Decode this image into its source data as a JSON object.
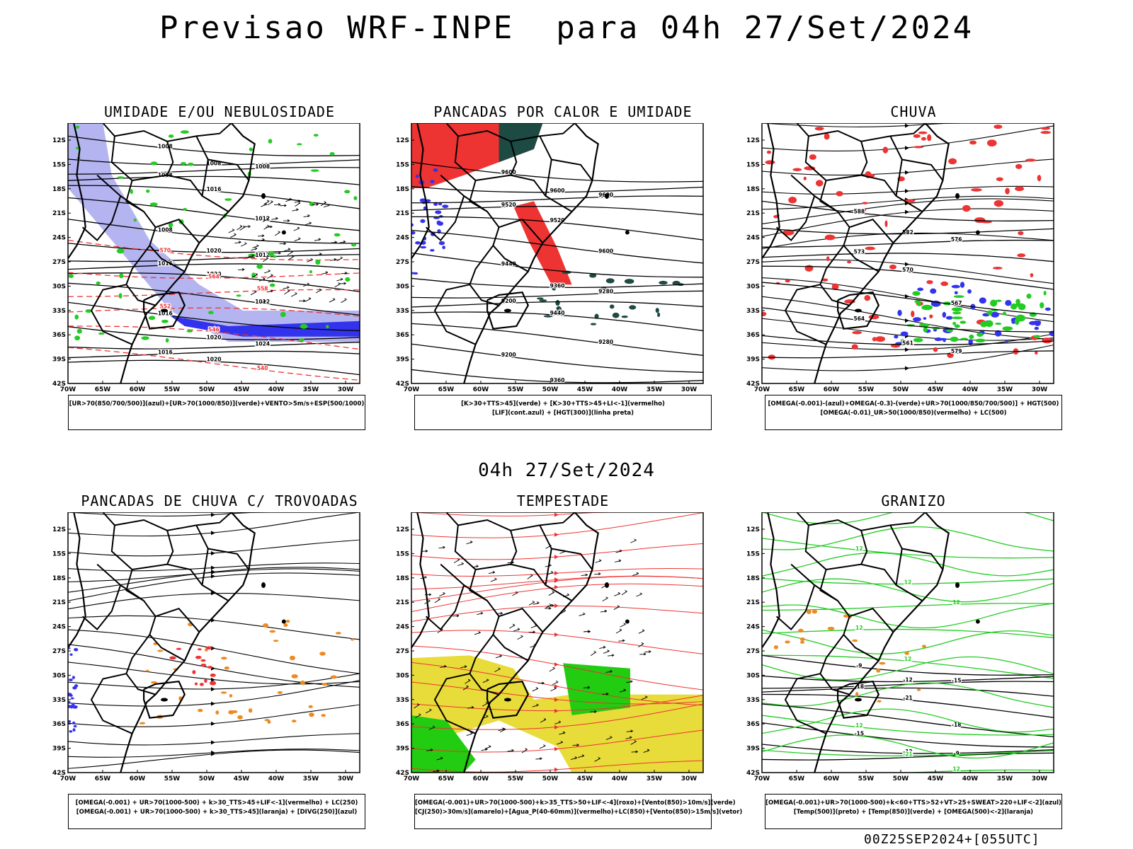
{
  "header": {
    "main_title": "Previsao WRF-INPE  para 04h 27/Set/2024",
    "sub_title": "04h 27/Set/2024",
    "footer_stamp": "00Z25SEP2024+[055UTC]"
  },
  "axes": {
    "lat_ticks": [
      "12S",
      "15S",
      "18S",
      "21S",
      "24S",
      "27S",
      "30S",
      "33S",
      "36S",
      "39S",
      "42S"
    ],
    "lon_ticks": [
      "70W",
      "65W",
      "60W",
      "55W",
      "50W",
      "45W",
      "40W",
      "35W",
      "30W"
    ]
  },
  "colors": {
    "humidity_upper": "#3333ee",
    "humidity_lower": "#22cc22",
    "light_blue_fill": "#b4b4f0",
    "red": "#ee3333",
    "dark_teal": "#1e4a44",
    "orange": "#ee8a22",
    "yellow": "#e8dc3a",
    "green_fill": "#22cc11"
  },
  "panels": [
    {
      "id": "umidade",
      "title": "UMIDADE E/OU NEBULOSIDADE",
      "contour_labels": [
        "1008",
        "1008",
        "1008",
        "1008",
        "1016",
        "1012",
        "1008",
        "1020",
        "1012",
        "1016",
        "1020",
        "1012",
        "1016",
        "1020",
        "1024",
        "1016",
        "1020",
        "570",
        "564",
        "558",
        "552",
        "546",
        "540"
      ],
      "legend": [
        "[UR>70(850/700/500)](azul)+[UR>70(1000/850)](verde)+VENTO>5m/s+ESP(500/1000)"
      ]
    },
    {
      "id": "pancadas_calor",
      "title": "PANCADAS POR CALOR E UMIDADE",
      "contour_labels": [
        "9600",
        "9600",
        "9600",
        "9520",
        "9520",
        "9600",
        "9440",
        "9360",
        "9280",
        "9200",
        "9440",
        "9280",
        "9200",
        "9360"
      ],
      "legend": [
        "[K>30+TTS>45](verde) + [K>30+TTS>45+LI<-1](vermelho)",
        "[LIF](cont.azul) + [HGT(300)](linha preta)"
      ]
    },
    {
      "id": "chuva",
      "title": "CHUVA",
      "contour_labels": [
        "588",
        "582",
        "576",
        "573",
        "570",
        "567",
        "564",
        "561",
        "579"
      ],
      "legend": [
        "[OMEGA(-0.001)-(azul)+OMEGA(-0.3)-(verde)+UR>70(1000/850/700/500)] + HGT(500)",
        "[OMEGA(-0.01)_UR>50(1000/850)(vermelho) + LC(500)"
      ]
    },
    {
      "id": "pancadas_trovoadas",
      "title": "PANCADAS DE CHUVA C/ TROVOADAS",
      "contour_labels": [],
      "legend": [
        "[OMEGA(-0.001) + UR>70(1000-500) + k>30_TTS>45+LIF<-1](vermelho) + LC(250)",
        "[OMEGA(-0.001) + UR>70(1000-500) + k>30_TTS>45](laranja) + [DIVG(250)](azul)"
      ]
    },
    {
      "id": "tempestade",
      "title": "TEMPESTADE",
      "contour_labels": [],
      "legend": [
        "[OMEGA(-0.001)+UR>70(1000-500)+k>35_TTS>50+LIF<-4](roxo)+[Vento(850)>10m/s](verde)",
        "[CJ(250)>30m/s](amarelo)+[Agua_P(40-60mm)](vermelho)+LC(850)+[Vento(850)>15m/s](vetor)"
      ]
    },
    {
      "id": "granizo",
      "title": "GRANIZO",
      "contour_labels": [
        "12",
        "12",
        "12",
        "12",
        "12",
        "-9",
        "-12",
        "-15",
        "-18",
        "-21",
        "-18",
        "-15",
        "-12",
        "-9",
        "12",
        "-21",
        "12"
      ],
      "legend": [
        "[OMEGA(-0.001)+UR>70(1000-500)+k<60+TTS>52+VT>25+SWEAT>220+LIF<-2](azul)",
        "[Temp(500)](preto) + [Temp(850)](verde) + [OMEGA(500)<-2](laranja)"
      ]
    }
  ]
}
